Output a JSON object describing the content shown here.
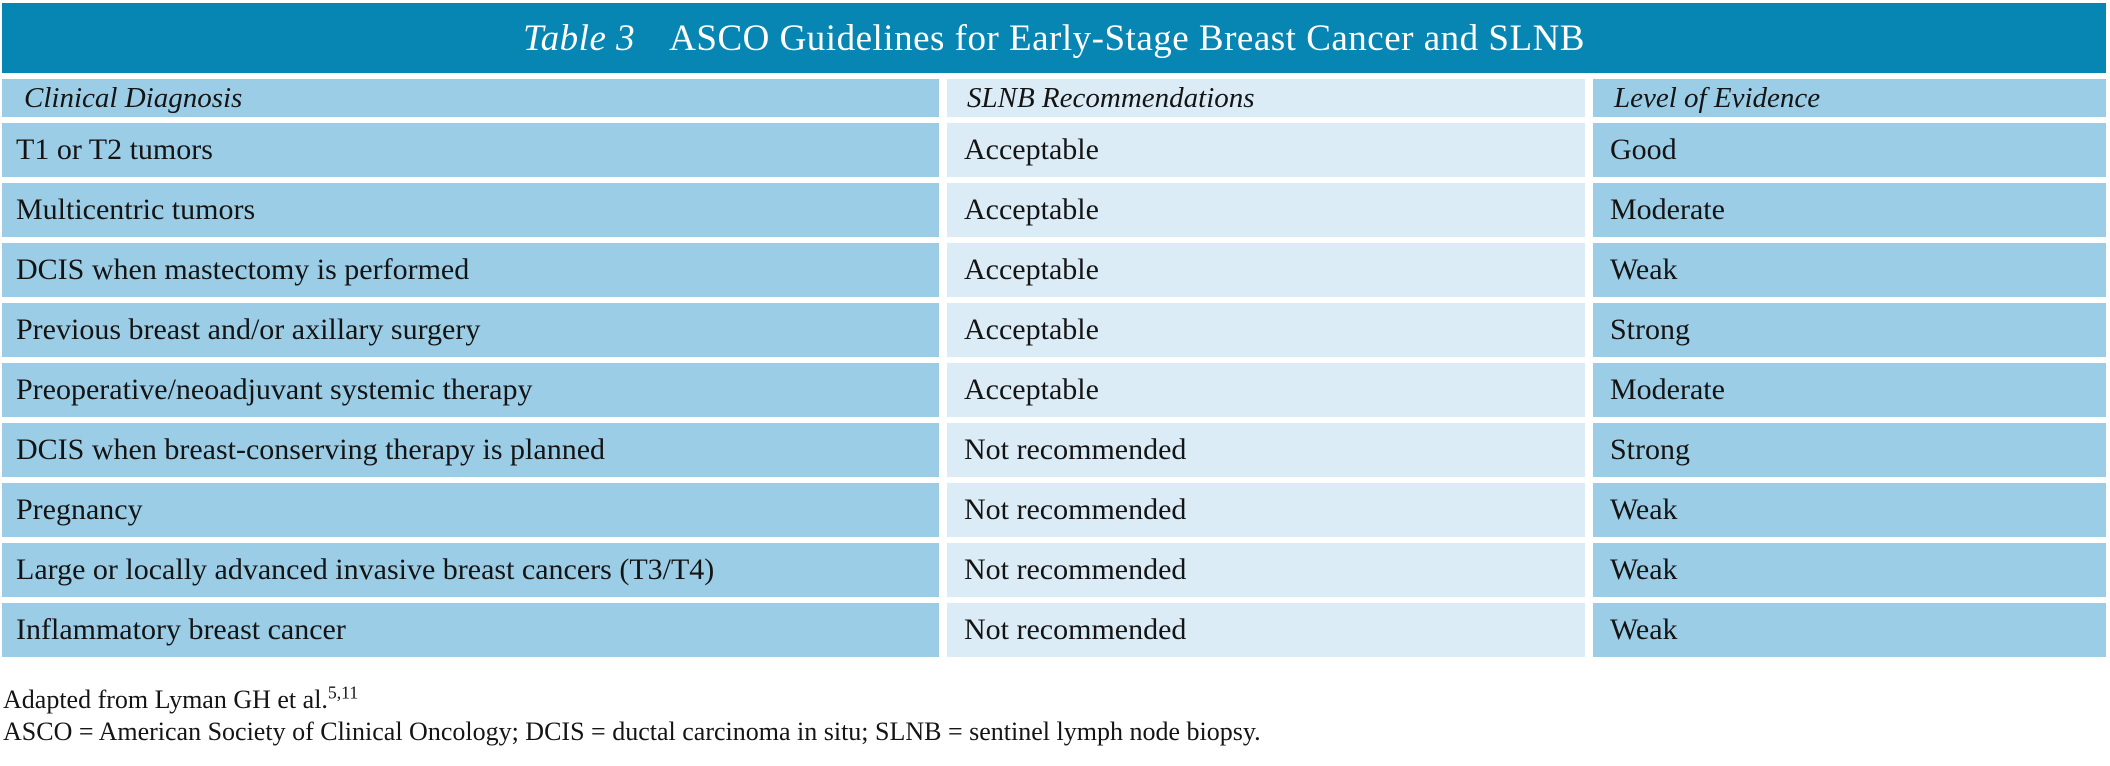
{
  "table": {
    "title_label": "Table 3",
    "title": "ASCO Guidelines for Early-Stage Breast Cancer and SLNB",
    "columns": {
      "diagnosis": "Clinical Diagnosis",
      "recommendation": "SLNB Recommendations",
      "evidence": "Level of Evidence"
    },
    "rows": [
      {
        "diagnosis": "T1 or T2 tumors",
        "recommendation": "Acceptable",
        "evidence": "Good"
      },
      {
        "diagnosis": "Multicentric tumors",
        "recommendation": "Acceptable",
        "evidence": "Moderate"
      },
      {
        "diagnosis": "DCIS when mastectomy is performed",
        "recommendation": "Acceptable",
        "evidence": "Weak"
      },
      {
        "diagnosis": "Previous breast and/or axillary surgery",
        "recommendation": "Acceptable",
        "evidence": "Strong"
      },
      {
        "diagnosis": "Preoperative/neoadjuvant systemic therapy",
        "recommendation": "Acceptable",
        "evidence": "Moderate"
      },
      {
        "diagnosis": "DCIS when breast-conserving therapy is planned",
        "recommendation": "Not recommended",
        "evidence": "Strong"
      },
      {
        "diagnosis": "Pregnancy",
        "recommendation": "Not recommended",
        "evidence": "Weak"
      },
      {
        "diagnosis": "Large or locally advanced invasive breast cancers (T3/T4)",
        "recommendation": "Not recommended",
        "evidence": "Weak"
      },
      {
        "diagnosis": "Inflammatory breast cancer",
        "recommendation": "Not recommended",
        "evidence": "Weak"
      }
    ]
  },
  "footnotes": {
    "adapted_text": "Adapted from Lyman GH et al.",
    "adapted_refs": "5,11",
    "abbreviations": "ASCO = American Society of Clinical Oncology; DCIS = ductal carcinoma in situ; SLNB = sentinel lymph node biopsy."
  },
  "colors": {
    "title_bar": "#0786b3",
    "column_primary": "#9bcde6",
    "column_secondary": "#dcecf6",
    "title_text": "#ffffff",
    "body_text": "#141414"
  }
}
